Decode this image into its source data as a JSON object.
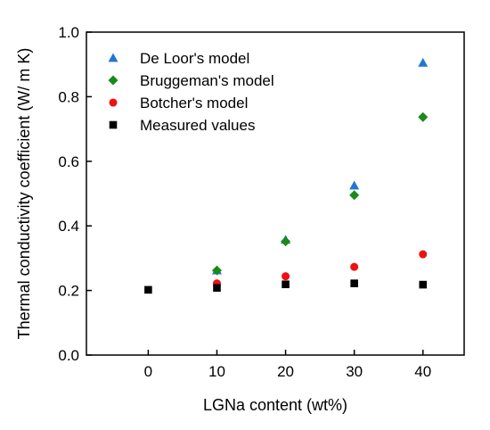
{
  "chart_data": {
    "type": "scatter",
    "title": "",
    "xlabel": "LGNa content (wt%)",
    "ylabel": "Thermal conductivity coefficient (W/ m K)",
    "xlim": [
      -9,
      46
    ],
    "ylim": [
      0.0,
      1.0
    ],
    "xticks": [
      0,
      10,
      20,
      30,
      40
    ],
    "yticks": [
      0.0,
      0.2,
      0.4,
      0.6,
      0.8,
      1.0
    ],
    "grid": false,
    "legend_position": "top-left",
    "series": [
      {
        "name": "De Loor's model",
        "marker": "triangle",
        "color": "#1f77d4",
        "x": [
          10,
          20,
          30,
          40
        ],
        "y": [
          0.262,
          0.357,
          0.525,
          0.905
        ]
      },
      {
        "name": "Bruggeman's model",
        "marker": "diamond",
        "color": "#1a8a1a",
        "x": [
          10,
          20,
          30,
          40
        ],
        "y": [
          0.262,
          0.352,
          0.495,
          0.737
        ]
      },
      {
        "name": "Botcher's model",
        "marker": "circle",
        "color": "#ee1111",
        "x": [
          10,
          20,
          30,
          40
        ],
        "y": [
          0.222,
          0.244,
          0.273,
          0.312
        ]
      },
      {
        "name": "Measured values",
        "marker": "square",
        "color": "#000000",
        "x": [
          0,
          10,
          20,
          30,
          40
        ],
        "y": [
          0.202,
          0.208,
          0.219,
          0.222,
          0.218
        ]
      }
    ]
  }
}
